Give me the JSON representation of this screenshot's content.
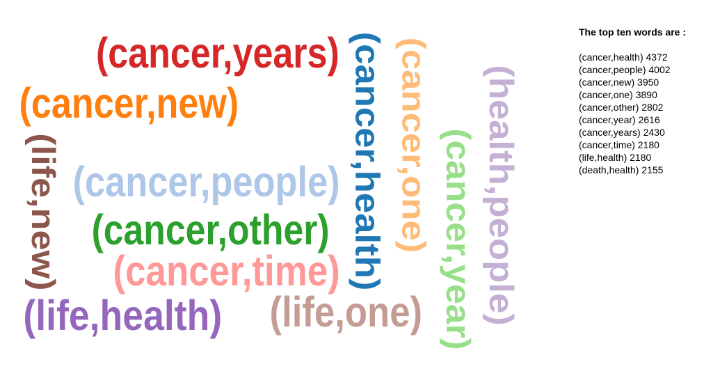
{
  "cloud": {
    "words": [
      {
        "text": "(cancer,years)",
        "color": "#d62728"
      },
      {
        "text": "(cancer,new)",
        "color": "#ff7f0e"
      },
      {
        "text": "(life,new)",
        "color": "#8c564b"
      },
      {
        "text": "(cancer,people)",
        "color": "#aec7e8"
      },
      {
        "text": "(cancer,other)",
        "color": "#2ca02c"
      },
      {
        "text": "(cancer,time)",
        "color": "#ff9896"
      },
      {
        "text": "(life,health)",
        "color": "#9467bd"
      },
      {
        "text": "(life,one)",
        "color": "#c49c94"
      },
      {
        "text": "(cancer,health)",
        "color": "#1f77b4"
      },
      {
        "text": "(cancer,one)",
        "color": "#ffbb78"
      },
      {
        "text": "(cancer,year)",
        "color": "#98df8a"
      },
      {
        "text": "(health,people)",
        "color": "#c5b0d5"
      }
    ]
  },
  "panel": {
    "title": "The top ten words are :",
    "items": [
      "(cancer,health) 4372",
      "(cancer,people) 4002",
      "(cancer,new) 3950",
      "(cancer,one) 3890",
      "(cancer,other) 2802",
      "(cancer,year) 2616",
      "(cancer,years) 2430",
      "(cancer,time) 2180",
      "(life,health) 2180",
      "(death,health) 2155"
    ]
  }
}
